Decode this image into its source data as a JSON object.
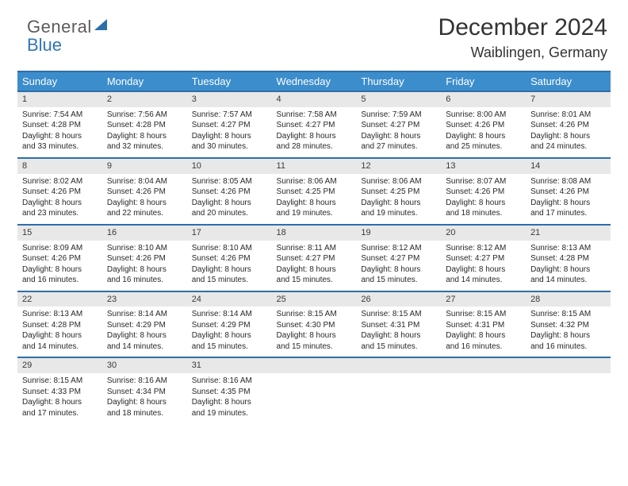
{
  "logo": {
    "line1": "General",
    "line2": "Blue"
  },
  "title": "December 2024",
  "location": "Waiblingen, Germany",
  "colors": {
    "header_bg": "#3c8dcc",
    "header_text": "#ffffff",
    "rule": "#2f6fa8",
    "daynum_bg": "#e8e8e8",
    "body_text": "#282828",
    "logo_gray": "#5c5c5c",
    "logo_blue": "#3177b8"
  },
  "columns": [
    "Sunday",
    "Monday",
    "Tuesday",
    "Wednesday",
    "Thursday",
    "Friday",
    "Saturday"
  ],
  "weeks": [
    [
      {
        "n": "1",
        "sr": "7:54 AM",
        "ss": "4:28 PM",
        "dl1": "Daylight: 8 hours",
        "dl2": "and 33 minutes."
      },
      {
        "n": "2",
        "sr": "7:56 AM",
        "ss": "4:28 PM",
        "dl1": "Daylight: 8 hours",
        "dl2": "and 32 minutes."
      },
      {
        "n": "3",
        "sr": "7:57 AM",
        "ss": "4:27 PM",
        "dl1": "Daylight: 8 hours",
        "dl2": "and 30 minutes."
      },
      {
        "n": "4",
        "sr": "7:58 AM",
        "ss": "4:27 PM",
        "dl1": "Daylight: 8 hours",
        "dl2": "and 28 minutes."
      },
      {
        "n": "5",
        "sr": "7:59 AM",
        "ss": "4:27 PM",
        "dl1": "Daylight: 8 hours",
        "dl2": "and 27 minutes."
      },
      {
        "n": "6",
        "sr": "8:00 AM",
        "ss": "4:26 PM",
        "dl1": "Daylight: 8 hours",
        "dl2": "and 25 minutes."
      },
      {
        "n": "7",
        "sr": "8:01 AM",
        "ss": "4:26 PM",
        "dl1": "Daylight: 8 hours",
        "dl2": "and 24 minutes."
      }
    ],
    [
      {
        "n": "8",
        "sr": "8:02 AM",
        "ss": "4:26 PM",
        "dl1": "Daylight: 8 hours",
        "dl2": "and 23 minutes."
      },
      {
        "n": "9",
        "sr": "8:04 AM",
        "ss": "4:26 PM",
        "dl1": "Daylight: 8 hours",
        "dl2": "and 22 minutes."
      },
      {
        "n": "10",
        "sr": "8:05 AM",
        "ss": "4:26 PM",
        "dl1": "Daylight: 8 hours",
        "dl2": "and 20 minutes."
      },
      {
        "n": "11",
        "sr": "8:06 AM",
        "ss": "4:25 PM",
        "dl1": "Daylight: 8 hours",
        "dl2": "and 19 minutes."
      },
      {
        "n": "12",
        "sr": "8:06 AM",
        "ss": "4:25 PM",
        "dl1": "Daylight: 8 hours",
        "dl2": "and 19 minutes."
      },
      {
        "n": "13",
        "sr": "8:07 AM",
        "ss": "4:26 PM",
        "dl1": "Daylight: 8 hours",
        "dl2": "and 18 minutes."
      },
      {
        "n": "14",
        "sr": "8:08 AM",
        "ss": "4:26 PM",
        "dl1": "Daylight: 8 hours",
        "dl2": "and 17 minutes."
      }
    ],
    [
      {
        "n": "15",
        "sr": "8:09 AM",
        "ss": "4:26 PM",
        "dl1": "Daylight: 8 hours",
        "dl2": "and 16 minutes."
      },
      {
        "n": "16",
        "sr": "8:10 AM",
        "ss": "4:26 PM",
        "dl1": "Daylight: 8 hours",
        "dl2": "and 16 minutes."
      },
      {
        "n": "17",
        "sr": "8:10 AM",
        "ss": "4:26 PM",
        "dl1": "Daylight: 8 hours",
        "dl2": "and 15 minutes."
      },
      {
        "n": "18",
        "sr": "8:11 AM",
        "ss": "4:27 PM",
        "dl1": "Daylight: 8 hours",
        "dl2": "and 15 minutes."
      },
      {
        "n": "19",
        "sr": "8:12 AM",
        "ss": "4:27 PM",
        "dl1": "Daylight: 8 hours",
        "dl2": "and 15 minutes."
      },
      {
        "n": "20",
        "sr": "8:12 AM",
        "ss": "4:27 PM",
        "dl1": "Daylight: 8 hours",
        "dl2": "and 14 minutes."
      },
      {
        "n": "21",
        "sr": "8:13 AM",
        "ss": "4:28 PM",
        "dl1": "Daylight: 8 hours",
        "dl2": "and 14 minutes."
      }
    ],
    [
      {
        "n": "22",
        "sr": "8:13 AM",
        "ss": "4:28 PM",
        "dl1": "Daylight: 8 hours",
        "dl2": "and 14 minutes."
      },
      {
        "n": "23",
        "sr": "8:14 AM",
        "ss": "4:29 PM",
        "dl1": "Daylight: 8 hours",
        "dl2": "and 14 minutes."
      },
      {
        "n": "24",
        "sr": "8:14 AM",
        "ss": "4:29 PM",
        "dl1": "Daylight: 8 hours",
        "dl2": "and 15 minutes."
      },
      {
        "n": "25",
        "sr": "8:15 AM",
        "ss": "4:30 PM",
        "dl1": "Daylight: 8 hours",
        "dl2": "and 15 minutes."
      },
      {
        "n": "26",
        "sr": "8:15 AM",
        "ss": "4:31 PM",
        "dl1": "Daylight: 8 hours",
        "dl2": "and 15 minutes."
      },
      {
        "n": "27",
        "sr": "8:15 AM",
        "ss": "4:31 PM",
        "dl1": "Daylight: 8 hours",
        "dl2": "and 16 minutes."
      },
      {
        "n": "28",
        "sr": "8:15 AM",
        "ss": "4:32 PM",
        "dl1": "Daylight: 8 hours",
        "dl2": "and 16 minutes."
      }
    ],
    [
      {
        "n": "29",
        "sr": "8:15 AM",
        "ss": "4:33 PM",
        "dl1": "Daylight: 8 hours",
        "dl2": "and 17 minutes."
      },
      {
        "n": "30",
        "sr": "8:16 AM",
        "ss": "4:34 PM",
        "dl1": "Daylight: 8 hours",
        "dl2": "and 18 minutes."
      },
      {
        "n": "31",
        "sr": "8:16 AM",
        "ss": "4:35 PM",
        "dl1": "Daylight: 8 hours",
        "dl2": "and 19 minutes."
      },
      null,
      null,
      null,
      null
    ]
  ]
}
